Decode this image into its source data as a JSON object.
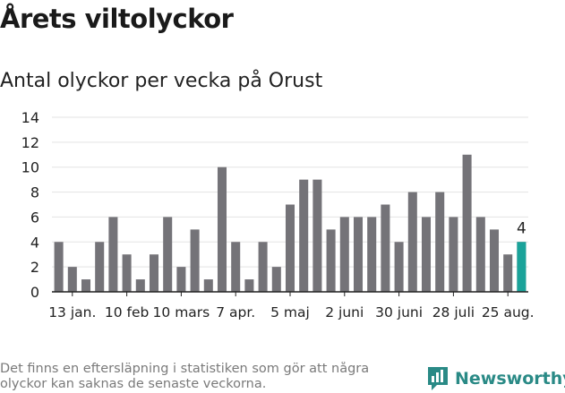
{
  "title": "Årets viltolyckor",
  "subtitle": "Antal olyckor per vecka på Orust",
  "footnote": "Det finns en eftersläpning i statistiken som gör att några olyckor kan saknas de senaste veckorna.",
  "logo": {
    "text": "Newsworthy",
    "icon": "newsworthy-logo-icon"
  },
  "colors": {
    "bar": "#747378",
    "highlight": "#1aa39a",
    "grid": "#e3e3e3",
    "axis": "#222222",
    "logo": "#2a8a86"
  },
  "chart_data": {
    "type": "bar",
    "title": "Antal olyckor per vecka på Orust",
    "xlabel": "",
    "ylabel": "",
    "ylim": [
      0,
      14
    ],
    "yticks": [
      0,
      2,
      4,
      6,
      8,
      10,
      12,
      14
    ],
    "xtick_labels": [
      "13 jan.",
      "10 feb",
      "10 mars",
      "7 apr.",
      "5 maj",
      "2 juni",
      "30 juni",
      "28 juli",
      "25 aug."
    ],
    "xtick_bar_index": [
      1,
      5,
      9,
      13,
      17,
      21,
      25,
      29,
      33
    ],
    "values": [
      4,
      2,
      1,
      4,
      6,
      3,
      1,
      3,
      6,
      2,
      5,
      1,
      10,
      4,
      1,
      4,
      2,
      7,
      9,
      9,
      5,
      6,
      6,
      6,
      7,
      4,
      8,
      6,
      8,
      6,
      11,
      6,
      5,
      3,
      4
    ],
    "highlight_index": 34,
    "highlight_label": "4",
    "grid": true,
    "legend": "none"
  }
}
